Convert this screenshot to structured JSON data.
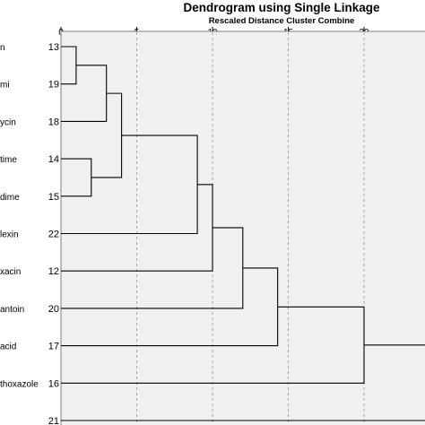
{
  "chart_data": {
    "type": "dendrogram",
    "title": "Dendrogram using Single Linkage",
    "subtitle": "Rescaled Distance Cluster Combine",
    "x_axis": {
      "range": [
        0,
        25
      ],
      "ticks": [
        0,
        5,
        10,
        15,
        20,
        25
      ],
      "tick_labels": [
        "0",
        "5",
        "10",
        "15",
        "20",
        ""
      ],
      "reference_lines": [
        5,
        10,
        15,
        20
      ]
    },
    "leaves": [
      {
        "label": "n",
        "number": "13"
      },
      {
        "label": "mi",
        "number": "19"
      },
      {
        "label": "ycin",
        "number": "18"
      },
      {
        "label": "time",
        "number": "14"
      },
      {
        "label": "dime",
        "number": "15"
      },
      {
        "label": "lexin",
        "number": "22"
      },
      {
        "label": "xacin",
        "number": "12"
      },
      {
        "label": "antoin",
        "number": "20"
      },
      {
        "label": "acid",
        "number": "17"
      },
      {
        "label": "thoxazole",
        "number": "16"
      },
      {
        "label": "",
        "number": "21"
      }
    ],
    "merges": [
      {
        "a": "L0",
        "b": "L1",
        "distance": 1
      },
      {
        "a": "M0",
        "b": "L2",
        "distance": 3
      },
      {
        "a": "L3",
        "b": "L4",
        "distance": 2
      },
      {
        "a": "M1",
        "b": "M2",
        "distance": 4
      },
      {
        "a": "M3",
        "b": "L5",
        "distance": 9
      },
      {
        "a": "M4",
        "b": "L6",
        "distance": 10
      },
      {
        "a": "M5",
        "b": "L7",
        "distance": 12
      },
      {
        "a": "M6",
        "b": "L8",
        "distance": 14.3
      },
      {
        "a": "M7",
        "b": "L9",
        "distance": 20
      },
      {
        "a": "M8",
        "b": "L10",
        "distance": 25
      }
    ]
  }
}
